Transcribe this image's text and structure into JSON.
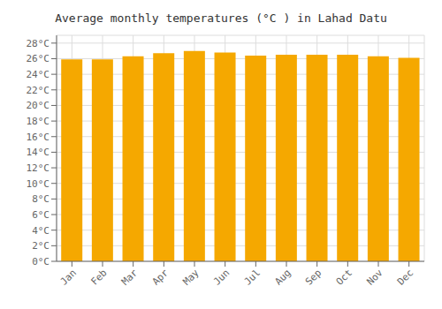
{
  "chart_data": {
    "type": "bar",
    "title": "Average monthly temperatures (°C ) in Lahad Datu",
    "categories": [
      "Jan",
      "Feb",
      "Mar",
      "Apr",
      "May",
      "Jun",
      "Jul",
      "Aug",
      "Sep",
      "Oct",
      "Nov",
      "Dec"
    ],
    "values": [
      25.9,
      25.9,
      26.3,
      26.7,
      27.0,
      26.8,
      26.4,
      26.5,
      26.5,
      26.5,
      26.3,
      26.1
    ],
    "color": "#F5A800",
    "ylim": [
      0,
      29
    ],
    "yticks": [
      {
        "value": 0,
        "label": "0°C"
      },
      {
        "value": 2,
        "label": "2°C"
      },
      {
        "value": 4,
        "label": "4°C"
      },
      {
        "value": 6,
        "label": "6°C"
      },
      {
        "value": 8,
        "label": "8°C"
      },
      {
        "value": 10,
        "label": "10°C"
      },
      {
        "value": 12,
        "label": "12°C"
      },
      {
        "value": 14,
        "label": "14°C"
      },
      {
        "value": 16,
        "label": "16°C"
      },
      {
        "value": 18,
        "label": "18°C"
      },
      {
        "value": 20,
        "label": "20°C"
      },
      {
        "value": 22,
        "label": "22°C"
      },
      {
        "value": 24,
        "label": "24°C"
      },
      {
        "value": 26,
        "label": "26°C"
      },
      {
        "value": 28,
        "label": "28°C"
      }
    ],
    "grid": true
  }
}
